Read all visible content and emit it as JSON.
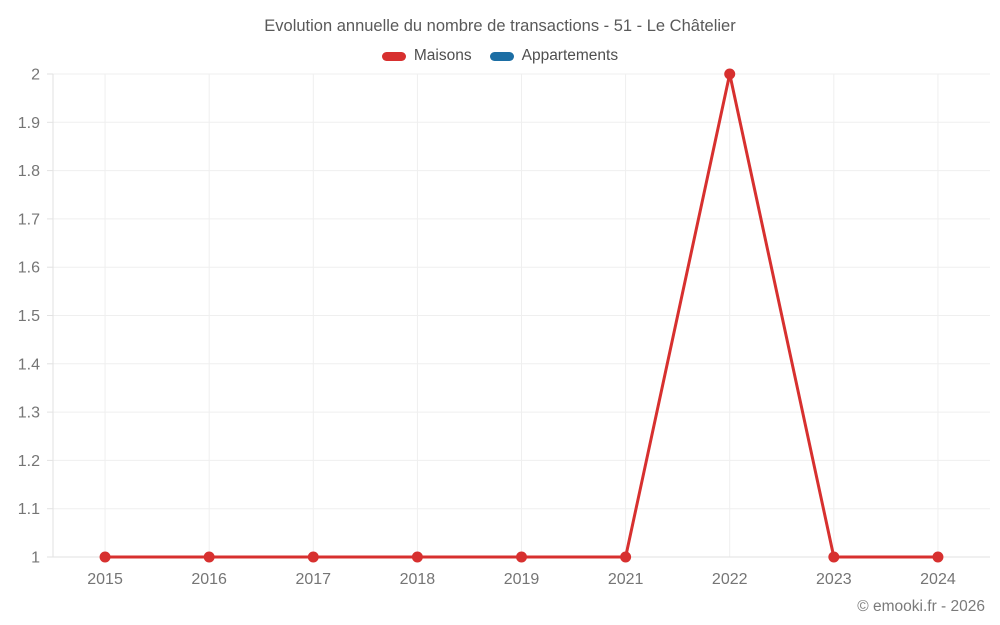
{
  "title": "Evolution annuelle du nombre de transactions - 51 - Le Châtelier",
  "legend": {
    "items": [
      {
        "label": "Maisons",
        "color": "#d7302f"
      },
      {
        "label": "Appartements",
        "color": "#1c6ea4"
      }
    ]
  },
  "footer": {
    "copyright": "© emooki.fr - 2026"
  },
  "chart_data": {
    "type": "line",
    "title": "Evolution annuelle du nombre de transactions - 51 - Le Châtelier",
    "categories": [
      "2015",
      "2016",
      "2017",
      "2018",
      "2019",
      "2021",
      "2022",
      "2023",
      "2024"
    ],
    "series": [
      {
        "name": "Maisons",
        "color": "#d7302f",
        "values": [
          1,
          1,
          1,
          1,
          1,
          1,
          2,
          1,
          1
        ]
      },
      {
        "name": "Appartements",
        "color": "#1c6ea4",
        "values": []
      }
    ],
    "xlabel": "",
    "ylabel": "",
    "ylim": [
      1,
      2
    ],
    "ytick_step": 0.1,
    "yticklabels": [
      "1",
      "1.1",
      "1.2",
      "1.3",
      "1.4",
      "1.5",
      "1.6",
      "1.7",
      "1.8",
      "1.9",
      "2"
    ],
    "grid": true,
    "legend_position": "top",
    "line_width": 3,
    "point_radius": 5.5
  },
  "colors": {
    "background": "#ffffff",
    "gridline": "#efefef",
    "axis": "#e2e2e2",
    "tick_label": "#757575",
    "title_text": "#595959",
    "legend_text": "#4f4f4f",
    "footer_text": "#7a7a7a"
  }
}
